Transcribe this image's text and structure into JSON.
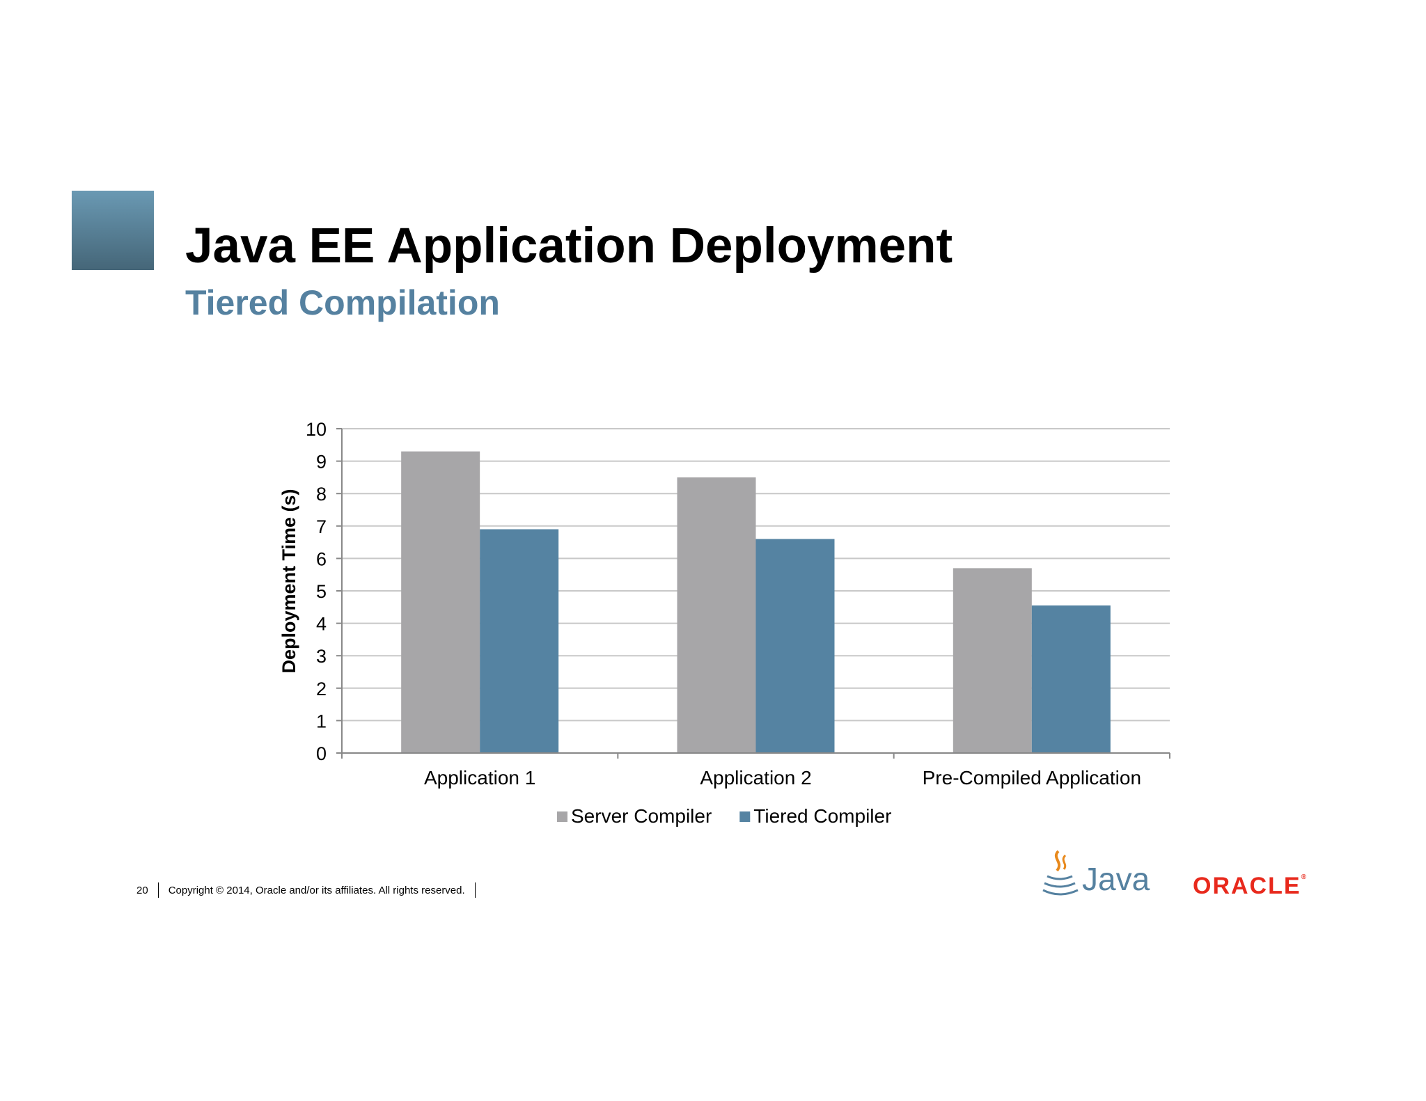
{
  "slide": {
    "title": "Java EE Application Deployment",
    "subtitle": "Tiered Compilation",
    "page_number": "20",
    "copyright": "Copyright © 2014, Oracle and/or its affiliates. All rights reserved.",
    "java_logo_text": "Java",
    "oracle_logo_text": "ORACLE"
  },
  "colors": {
    "accent": "#5581a0",
    "server_compiler": "#a7a6a8",
    "tiered_compiler": "#5583a2",
    "oracle_red": "#e8291c"
  },
  "chart_data": {
    "type": "bar",
    "categories": [
      "Application 1",
      "Application 2",
      "Pre-Compiled Application"
    ],
    "series": [
      {
        "name": "Server Compiler",
        "values": [
          9.3,
          8.5,
          5.7
        ]
      },
      {
        "name": "Tiered Compiler",
        "values": [
          6.9,
          6.6,
          4.55
        ]
      }
    ],
    "title": "",
    "xlabel": "",
    "ylabel": "Deployment Time (s)",
    "ylim": [
      0,
      10
    ],
    "yticks": [
      0,
      1,
      2,
      3,
      4,
      5,
      6,
      7,
      8,
      9,
      10
    ],
    "grid": true,
    "legend": "bottom"
  }
}
